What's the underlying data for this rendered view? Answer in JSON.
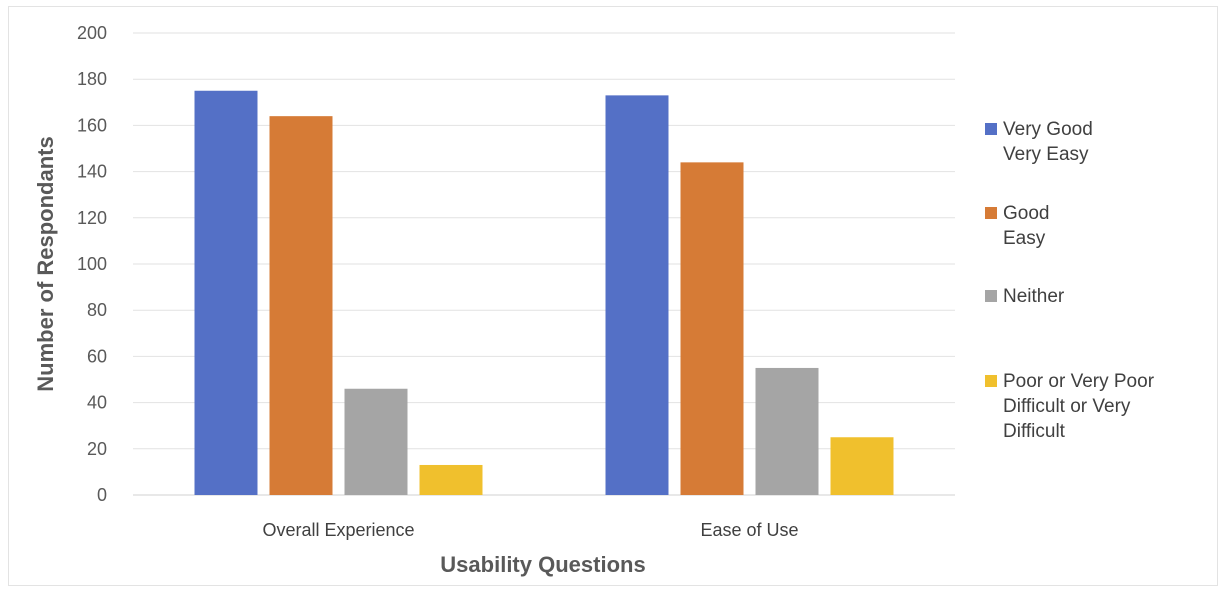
{
  "chart_data": {
    "type": "bar",
    "title": "",
    "xlabel": "Usability Questions",
    "ylabel": "Number of Respondants",
    "ylim": [
      0,
      200
    ],
    "yticks": [
      "0",
      "20",
      "40",
      "60",
      "80",
      "100",
      "120",
      "140",
      "160",
      "180",
      "200"
    ],
    "categories": [
      "Overall Experience",
      "Ease of Use"
    ],
    "series": [
      {
        "name": "Very Good\nVery Easy",
        "color": "#5470c6",
        "values": [
          175,
          173
        ]
      },
      {
        "name": "Good\nEasy",
        "color": "#d67b36",
        "values": [
          164,
          144
        ]
      },
      {
        "name": "Neither",
        "color": "#a5a5a5",
        "values": [
          46,
          55
        ]
      },
      {
        "name": "Poor or Very Poor\nDifficult or Very\nDifficult",
        "color": "#f0c02d",
        "values": [
          13,
          25
        ]
      }
    ],
    "grid": true,
    "legend_position": "right"
  }
}
